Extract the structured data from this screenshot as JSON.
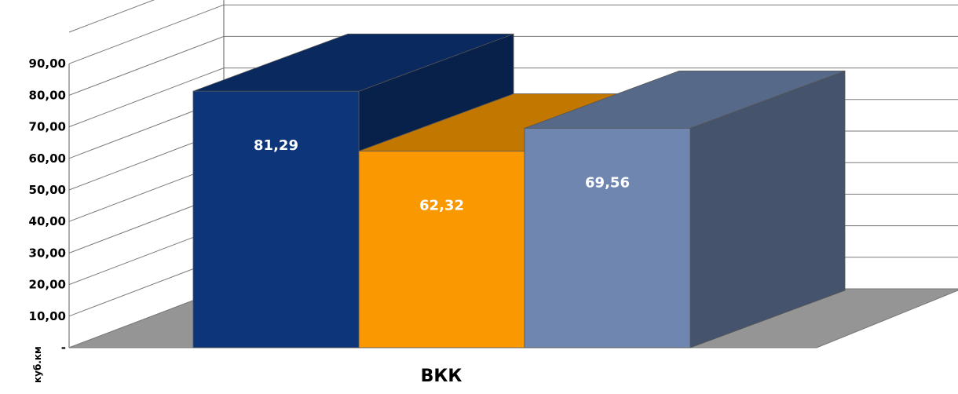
{
  "chart_data": {
    "type": "bar",
    "categories": [
      "ВКК"
    ],
    "series": [
      {
        "values": [
          81.29
        ],
        "value_label": "81,29",
        "color": "#0d3579"
      },
      {
        "values": [
          62.32
        ],
        "value_label": "62,32",
        "color": "#f99800"
      },
      {
        "values": [
          69.56
        ],
        "value_label": "69,56",
        "color": "#6f86b0"
      }
    ],
    "ylabel": "куб.км",
    "ylim": [
      0,
      90
    ],
    "yticks": [
      {
        "value": 0,
        "label": "-"
      },
      {
        "value": 10,
        "label": "10,00"
      },
      {
        "value": 20,
        "label": "20,00"
      },
      {
        "value": 30,
        "label": "30,00"
      },
      {
        "value": 40,
        "label": "40,00"
      },
      {
        "value": 50,
        "label": "50,00"
      },
      {
        "value": 60,
        "label": "60,00"
      },
      {
        "value": 70,
        "label": "70,00"
      },
      {
        "value": 80,
        "label": "80,00"
      },
      {
        "value": 90,
        "label": "90,00"
      }
    ],
    "grid": true,
    "style": "3d-clustered-bar"
  }
}
